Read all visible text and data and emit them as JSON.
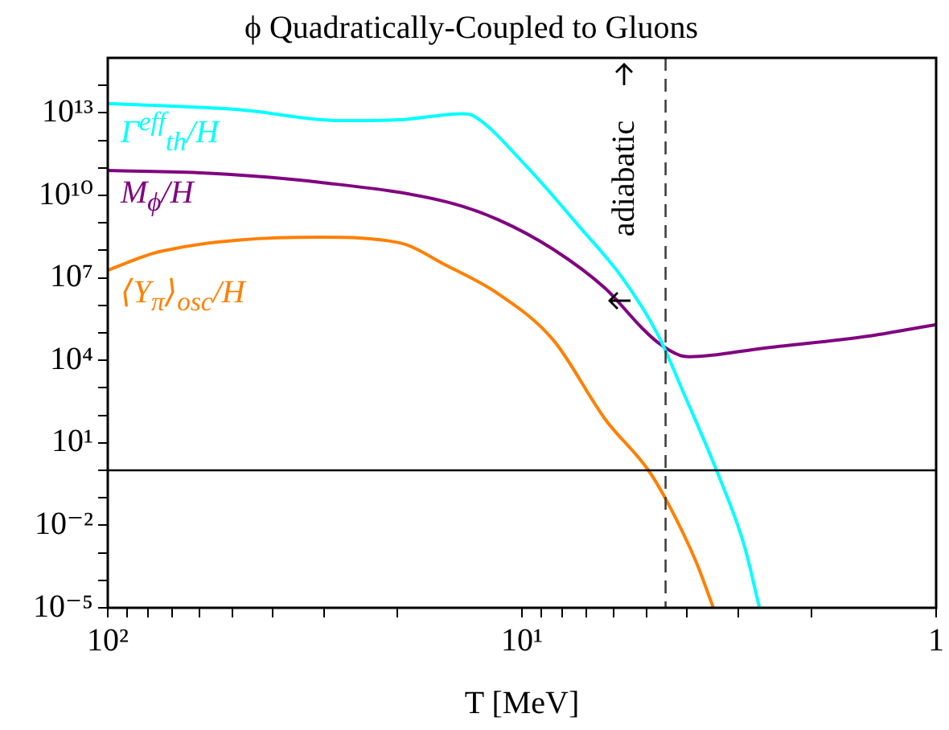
{
  "chart_data": {
    "type": "line",
    "title": "ϕ Quadratically-Coupled to Gluons",
    "xlabel": "T [MeV]",
    "log": "xy",
    "xlim": [
      100,
      1
    ],
    "ylim": [
      1e-05,
      1000000000000000.0
    ],
    "xticks": [
      {
        "value": 100,
        "label": "10²"
      },
      {
        "value": 90,
        "label": null
      },
      {
        "value": 80,
        "label": null
      },
      {
        "value": 70,
        "label": null
      },
      {
        "value": 60,
        "label": null
      },
      {
        "value": 50,
        "label": null
      },
      {
        "value": 40,
        "label": null
      },
      {
        "value": 30,
        "label": null
      },
      {
        "value": 20,
        "label": null
      },
      {
        "value": 10,
        "label": "10¹"
      },
      {
        "value": 9,
        "label": null
      },
      {
        "value": 8,
        "label": null
      },
      {
        "value": 7,
        "label": null
      },
      {
        "value": 6,
        "label": null
      },
      {
        "value": 5,
        "label": null
      },
      {
        "value": 4,
        "label": null
      },
      {
        "value": 3,
        "label": null
      },
      {
        "value": 2,
        "label": null
      },
      {
        "value": 1,
        "label": "1"
      }
    ],
    "yticks": [
      {
        "value": 1e-05,
        "label": "10⁻⁵"
      },
      {
        "value": 0.0001,
        "label": null
      },
      {
        "value": 0.001,
        "label": null
      },
      {
        "value": 0.01,
        "label": "10⁻²"
      },
      {
        "value": 0.1,
        "label": null
      },
      {
        "value": 1,
        "label": null
      },
      {
        "value": 10,
        "label": "10¹"
      },
      {
        "value": 100,
        "label": null
      },
      {
        "value": 1000,
        "label": null
      },
      {
        "value": 10000.0,
        "label": "10⁴"
      },
      {
        "value": 100000.0,
        "label": null
      },
      {
        "value": 1000000.0,
        "label": null
      },
      {
        "value": 10000000.0,
        "label": "10⁷"
      },
      {
        "value": 100000000.0,
        "label": null
      },
      {
        "value": 1000000000.0,
        "label": null
      },
      {
        "value": 10000000000.0,
        "label": "10¹⁰"
      },
      {
        "value": 100000000000.0,
        "label": null
      },
      {
        "value": 1000000000000.0,
        "label": null
      },
      {
        "value": 10000000000000.0,
        "label": "10¹³"
      },
      {
        "value": 100000000000000.0,
        "label": null
      }
    ],
    "grid": false,
    "marker": "none",
    "line_style": "solid",
    "series": [
      {
        "name": "Γ$^{eff}$$_{th}$/H",
        "color": "#00ffff",
        "x": [
          100,
          48,
          27.5,
          19.8,
          13.9,
          13.1,
          9.78,
          7.31,
          5.75,
          4.7,
          4.04,
          3.39,
          2.91,
          2.67
        ],
        "values": [
          22000000000000.0,
          13000000000000.0,
          5200000000000.0,
          5600000000000.0,
          9300000000000.0,
          7800000000000.0,
          120000000000.0,
          810000000.0,
          11000000.0,
          87000.0,
          500,
          1,
          0.002,
          1e-05
        ]
      },
      {
        "name": "M$_{ϕ}$/H",
        "color": "#800080",
        "x": [
          100,
          55.8,
          30.8,
          15.2,
          11.4,
          8.41,
          6.29,
          5.13,
          4.7,
          4.15,
          3.94,
          2.6,
          1.44,
          1
        ],
        "values": [
          80000000000.0,
          63000000000.0,
          30000000000.0,
          5800000000.0,
          1300000000.0,
          110000000.0,
          4100000.0,
          150000.0,
          45000.0,
          15000.0,
          13500.0,
          28000.0,
          78000.0,
          200000.0
        ]
      },
      {
        "name": "⟨Υ$_{π}$⟩$_{osc}$/H",
        "color": "#ff8000",
        "x": [
          100,
          74.7,
          30.8,
          19.8,
          15.2,
          11.4,
          8.41,
          6.29,
          4.95,
          4.42,
          3.8,
          3.45
        ],
        "values": [
          19000000.0,
          91000000.0,
          300000000.0,
          190000000.0,
          28000000.0,
          2600000.0,
          56000.0,
          71,
          1,
          0.056,
          0.00048,
          1e-05
        ]
      }
    ],
    "ref_lines": [
      {
        "axis": "y",
        "value": 1,
        "color": "#000000",
        "line_style": "solid"
      },
      {
        "axis": "x",
        "value": 4.5,
        "color": "#404040",
        "line_style": "dashed"
      }
    ],
    "annotations": [
      "adiabatic"
    ]
  }
}
